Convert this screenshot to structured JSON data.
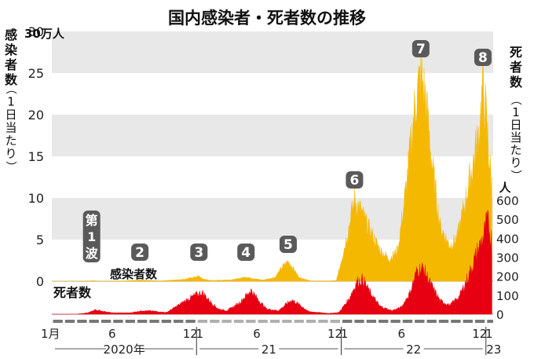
{
  "chart_data": {
    "type": "area",
    "title": "国内感染者・死者数の推移",
    "left_axis": {
      "label": "感染者数",
      "label_paren": "（1日当たり）",
      "unit": "30万人",
      "ticks": [
        "0",
        "5",
        "10",
        "15",
        "20",
        "25"
      ],
      "top_tick": "30",
      "range": [
        0,
        30
      ]
    },
    "right_axis": {
      "label": "死者数",
      "label_paren": "（1日当たり）",
      "unit": "人",
      "ticks": [
        "0",
        "100",
        "200",
        "300",
        "400",
        "500",
        "600"
      ],
      "range": [
        0,
        600
      ]
    },
    "x_axis": {
      "month_labels": [
        {
          "t": 0,
          "text": "1月"
        },
        {
          "t": 5,
          "text": "6"
        },
        {
          "t": 11,
          "text": "12"
        },
        {
          "t": 12,
          "text": "1"
        },
        {
          "t": 17,
          "text": "6"
        },
        {
          "t": 23,
          "text": "12"
        },
        {
          "t": 24,
          "text": "1"
        },
        {
          "t": 29,
          "text": "6"
        },
        {
          "t": 35,
          "text": "12"
        },
        {
          "t": 36,
          "text": "1"
        }
      ],
      "year_labels": [
        {
          "text": "2020年",
          "from": 0,
          "to": 12
        },
        {
          "text": "21",
          "from": 12,
          "to": 24
        },
        {
          "text": "22",
          "from": 24,
          "to": 36
        },
        {
          "text": "23",
          "from": 36,
          "to": 36.5
        }
      ]
    },
    "series": [
      {
        "name": "感染者数",
        "color": "#f5b800",
        "unit": "万人",
        "points": [
          [
            0,
            0
          ],
          [
            2,
            0
          ],
          [
            3.1,
            0.05
          ],
          [
            3.5,
            0.07
          ],
          [
            4,
            0.02
          ],
          [
            6,
            0.05
          ],
          [
            7.2,
            0.15
          ],
          [
            7.6,
            0.13
          ],
          [
            9,
            0.05
          ],
          [
            10,
            0.15
          ],
          [
            11,
            0.25
          ],
          [
            12.2,
            0.65
          ],
          [
            12.5,
            0.3
          ],
          [
            13.2,
            0.1
          ],
          [
            15,
            0.2
          ],
          [
            16.1,
            0.55
          ],
          [
            16.5,
            0.4
          ],
          [
            17.5,
            0.15
          ],
          [
            18.5,
            0.5
          ],
          [
            19.2,
            2.0
          ],
          [
            19.6,
            2.5
          ],
          [
            20,
            1.7
          ],
          [
            20.5,
            0.5
          ],
          [
            21.5,
            0.05
          ],
          [
            23,
            0.05
          ],
          [
            23.6,
            0.1
          ],
          [
            24.3,
            4.5
          ],
          [
            25.1,
            10.3
          ],
          [
            25.6,
            9.0
          ],
          [
            26.2,
            7.0
          ],
          [
            27.2,
            4.0
          ],
          [
            28,
            2.8
          ],
          [
            28.7,
            4.0
          ],
          [
            29.4,
            12.0
          ],
          [
            30.1,
            22.0
          ],
          [
            30.6,
            26.2
          ],
          [
            31,
            23.0
          ],
          [
            31.6,
            14.0
          ],
          [
            32.2,
            7.0
          ],
          [
            33.0,
            4.5
          ],
          [
            33.6,
            5.5
          ],
          [
            34.2,
            9.5
          ],
          [
            34.8,
            14.0
          ],
          [
            35.4,
            18.5
          ],
          [
            35.75,
            24.8
          ],
          [
            36.0,
            21.0
          ],
          [
            36.3,
            15.0
          ],
          [
            36.5,
            12.0
          ]
        ]
      },
      {
        "name": "死者数",
        "color": "#e60012",
        "unit": "人",
        "points": [
          [
            0,
            0
          ],
          [
            2,
            0
          ],
          [
            3.0,
            8
          ],
          [
            3.6,
            25
          ],
          [
            4,
            20
          ],
          [
            5,
            8
          ],
          [
            6.5,
            8
          ],
          [
            7.5,
            20
          ],
          [
            8.3,
            18
          ],
          [
            9.5,
            10
          ],
          [
            10.5,
            50
          ],
          [
            11.2,
            80
          ],
          [
            12.0,
            110
          ],
          [
            12.5,
            120
          ],
          [
            13,
            80
          ],
          [
            13.8,
            30
          ],
          [
            14.5,
            20
          ],
          [
            15.5,
            60
          ],
          [
            16.2,
            110
          ],
          [
            16.5,
            135
          ],
          [
            17,
            90
          ],
          [
            17.8,
            30
          ],
          [
            18.8,
            20
          ],
          [
            19.5,
            60
          ],
          [
            19.9,
            80
          ],
          [
            20.6,
            50
          ],
          [
            21.3,
            15
          ],
          [
            23,
            5
          ],
          [
            23.8,
            10
          ],
          [
            24.6,
            80
          ],
          [
            25.3,
            180
          ],
          [
            25.8,
            195
          ],
          [
            26.3,
            130
          ],
          [
            27.2,
            45
          ],
          [
            28.2,
            20
          ],
          [
            29.0,
            40
          ],
          [
            29.7,
            120
          ],
          [
            30.3,
            245
          ],
          [
            30.8,
            255
          ],
          [
            31.4,
            170
          ],
          [
            32.2,
            75
          ],
          [
            33.0,
            50
          ],
          [
            33.8,
            100
          ],
          [
            34.6,
            220
          ],
          [
            35.2,
            330
          ],
          [
            35.8,
            430
          ],
          [
            36.1,
            510
          ],
          [
            36.4,
            440
          ],
          [
            36.5,
            390
          ]
        ]
      }
    ],
    "wave_labels": [
      {
        "text": "第1波",
        "t": 3.3
      },
      {
        "text": "2",
        "t": 7.3
      },
      {
        "text": "3",
        "t": 12.2
      },
      {
        "text": "4",
        "t": 16.1
      },
      {
        "text": "5",
        "t": 19.6
      },
      {
        "text": "6",
        "t": 25.1
      },
      {
        "text": "7",
        "t": 30.6
      },
      {
        "text": "8",
        "t": 35.75
      }
    ]
  }
}
